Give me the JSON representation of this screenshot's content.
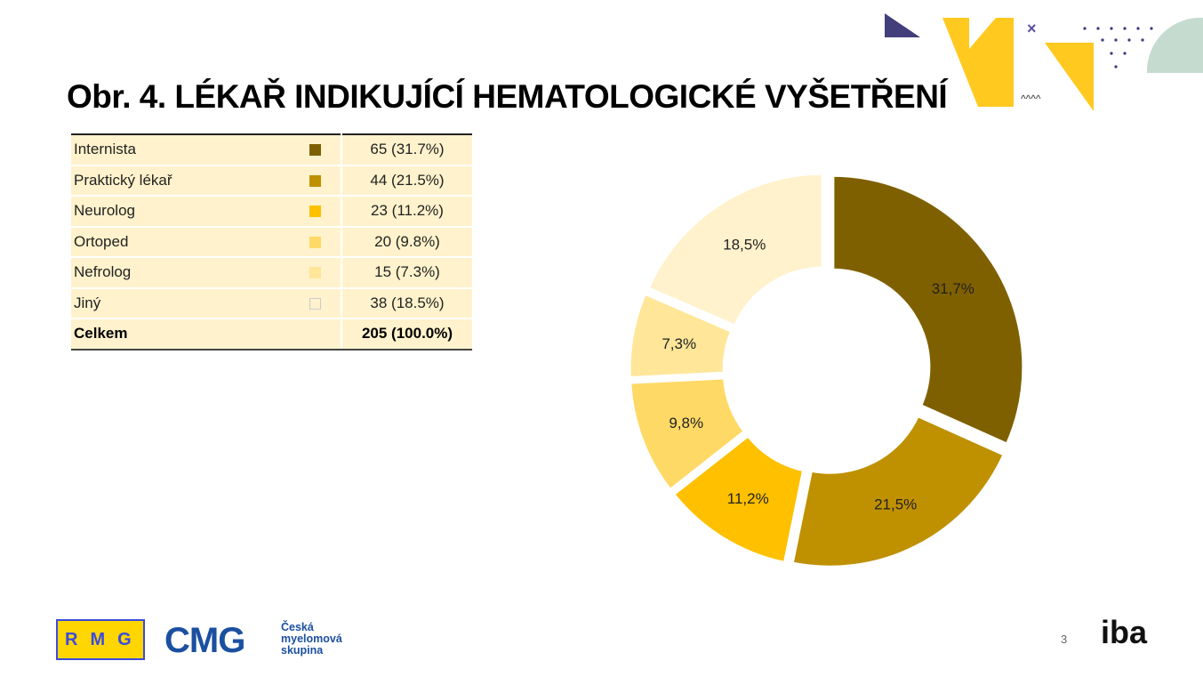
{
  "title": "Obr. 4. LÉKAŘ INDIKUJÍCÍ HEMATOLOGICKÉ VYŠETŘENÍ",
  "table": {
    "rows": [
      {
        "label": "Internista",
        "value": "65 (31.7%)",
        "color": "#7f6000"
      },
      {
        "label": "Praktický lékař",
        "value": "44 (21.5%)",
        "color": "#bf9000"
      },
      {
        "label": "Neurolog",
        "value": "23 (11.2%)",
        "color": "#ffc000"
      },
      {
        "label": "Ortoped",
        "value": "20 (9.8%)",
        "color": "#ffd966"
      },
      {
        "label": "Nefrolog",
        "value": "15 (7.3%)",
        "color": "#ffe699"
      },
      {
        "label": "Jiný",
        "value": "38 (18.5%)",
        "color": "#fff2cc"
      }
    ],
    "total_label": "Celkem",
    "total_value": "205 (100.0%)"
  },
  "chart_data": {
    "type": "pie",
    "donut": true,
    "categories": [
      "Internista",
      "Praktický lékař",
      "Neurolog",
      "Ortoped",
      "Nefrolog",
      "Jiný"
    ],
    "values": [
      31.7,
      21.5,
      11.2,
      9.8,
      7.3,
      18.5
    ],
    "counts": [
      65,
      44,
      23,
      20,
      15,
      38
    ],
    "data_labels": [
      "31,7%",
      "21,5%",
      "11,2%",
      "9,8%",
      "7,3%",
      "18,5%"
    ],
    "colors": [
      "#7f6000",
      "#bf9000",
      "#ffc000",
      "#ffd966",
      "#ffe699",
      "#fff2cc"
    ]
  },
  "footer": {
    "rmg": "RMG",
    "cmg": "CMG",
    "cmg_sub": [
      "Česká",
      "myelomová",
      "skupina"
    ],
    "page": "3",
    "iba": "iba"
  }
}
